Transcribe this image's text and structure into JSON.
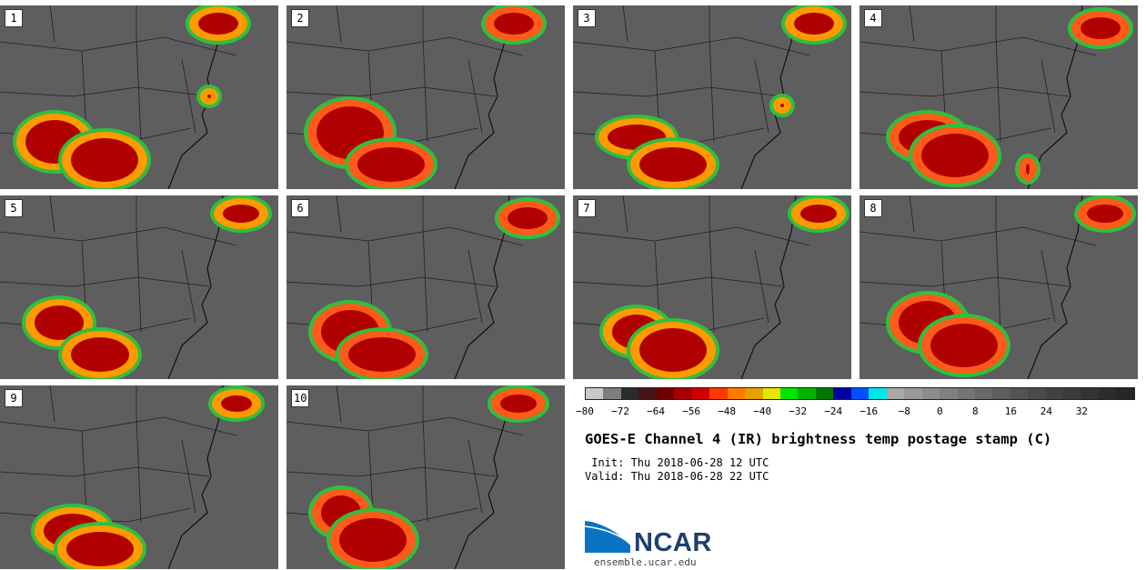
{
  "panels": [
    {
      "label": "1"
    },
    {
      "label": "2"
    },
    {
      "label": "3"
    },
    {
      "label": "4"
    },
    {
      "label": "5"
    },
    {
      "label": "6"
    },
    {
      "label": "7"
    },
    {
      "label": "8"
    },
    {
      "label": "9"
    },
    {
      "label": "10"
    }
  ],
  "colorbar": {
    "ticks": [
      "−80",
      "−72",
      "−64",
      "−56",
      "−48",
      "−40",
      "−32",
      "−24",
      "−16",
      "−8",
      "0",
      "8",
      "16",
      "24",
      "32"
    ],
    "colors": [
      "#c8c8c8",
      "#7d7d7d",
      "#2b2b2b",
      "#451414",
      "#6e0000",
      "#a60000",
      "#d00000",
      "#ff3a00",
      "#ff7800",
      "#e6a000",
      "#e6e600",
      "#00e600",
      "#00b400",
      "#007800",
      "#0000a0",
      "#0050ff",
      "#00e6e6",
      "#a8a8a8",
      "#999999",
      "#8c8c8c",
      "#808080",
      "#747474",
      "#686868",
      "#5e5e5e",
      "#545454",
      "#4a4a4a",
      "#424242",
      "#3a3a3a",
      "#333333",
      "#2c2c2c",
      "#262626"
    ]
  },
  "title": "GOES-E Channel 4 (IR) brightness temp postage stamp (C)",
  "init": " Init: Thu 2018-06-28 12 UTC",
  "valid": "Valid: Thu 2018-06-28 22 UTC",
  "logo": {
    "text": "NCAR",
    "url": "ensemble.ucar.edu"
  }
}
